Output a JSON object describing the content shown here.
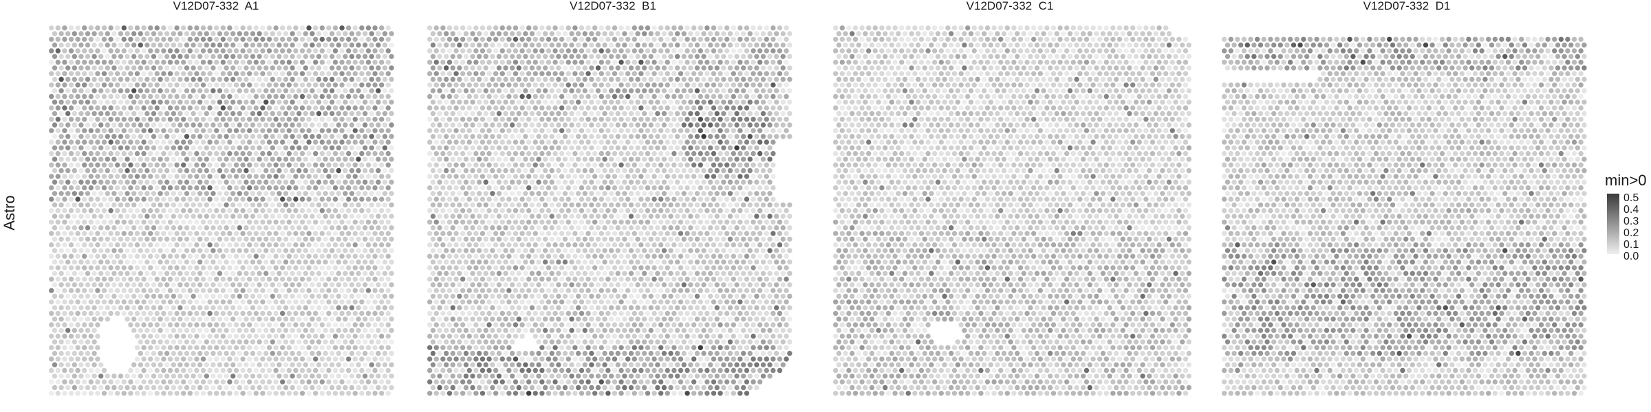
{
  "figure": {
    "row_label": "Astro",
    "legend_title": "min>0"
  },
  "chart_data": {
    "type": "spatial",
    "row_label": "Astro",
    "colorbar": {
      "title": "min>0",
      "min": 0.0,
      "max": 0.55,
      "ticks": [
        "0.5",
        "0.4",
        "0.3",
        "0.2",
        "0.1",
        "0.0"
      ],
      "low_color": "#efefef",
      "high_color": "#3a3a3a"
    },
    "panels": [
      {
        "title": "V12D07-332  A1"
      },
      {
        "title": "V12D07-332  B1"
      },
      {
        "title": "V12D07-332  C1"
      },
      {
        "title": "V12D07-332  D1"
      }
    ]
  }
}
